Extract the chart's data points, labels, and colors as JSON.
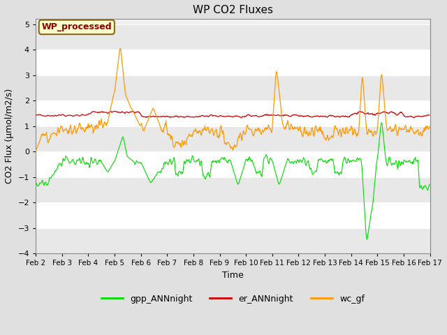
{
  "title": "WP CO2 Fluxes",
  "xlabel": "Time",
  "ylabel": "CO2 Flux (μmol/m2/s)",
  "ylim": [
    -4.0,
    5.2
  ],
  "yticks": [
    -4.0,
    -3.0,
    -2.0,
    -1.0,
    0.0,
    1.0,
    2.0,
    3.0,
    4.0,
    5.0
  ],
  "bg_color": "#e0e0e0",
  "plot_bg_color": "#ffffff",
  "band_colors": [
    "#e8e8e8",
    "#ffffff"
  ],
  "grid_color": "#d0d0d0",
  "legend_label": "WP_processed",
  "legend_box_color": "#ffffcc",
  "legend_box_edge": "#8b6914",
  "line_colors": {
    "gpp": "#00dd00",
    "er": "#cc0000",
    "wc": "#ff9900"
  },
  "line_labels": [
    "gpp_ANNnight",
    "er_ANNnight",
    "wc_gf"
  ],
  "n_points": 720,
  "xtick_labels": [
    "Feb 2",
    "Feb 3",
    "Feb 4",
    "Feb 5",
    "Feb 6",
    "Feb 7",
    "Feb 8",
    "Feb 9",
    "Feb 10",
    "Feb 11",
    "Feb 12",
    "Feb 13",
    "Feb 14",
    "Feb 15",
    "Feb 16",
    "Feb 17"
  ],
  "xtick_positions": [
    0,
    48,
    96,
    144,
    192,
    240,
    288,
    336,
    384,
    432,
    480,
    528,
    576,
    624,
    672,
    720
  ]
}
